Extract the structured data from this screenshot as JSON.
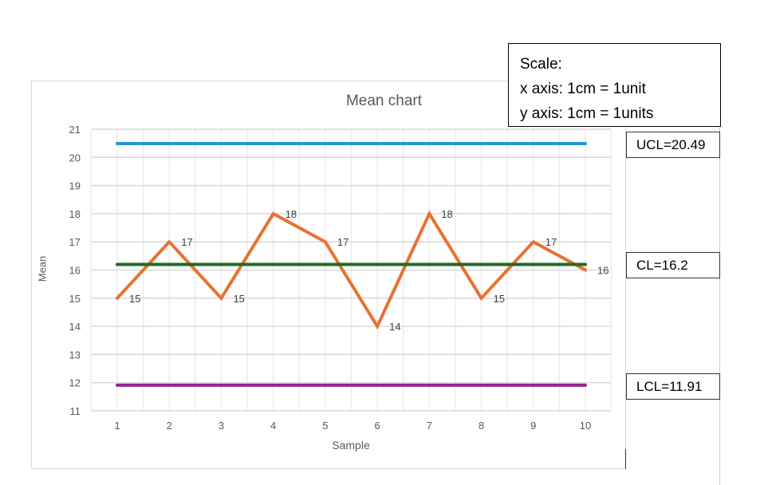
{
  "chart_data": {
    "type": "line",
    "title": "Mean chart",
    "xlabel": "Sample",
    "ylabel": "Mean",
    "categories": [
      "1",
      "2",
      "3",
      "4",
      "5",
      "6",
      "7",
      "8",
      "9",
      "10"
    ],
    "ylim": [
      11,
      21
    ],
    "yticks": [
      11,
      12,
      13,
      14,
      15,
      16,
      17,
      18,
      19,
      20,
      21
    ],
    "grid": true,
    "legend": "none",
    "series": [
      {
        "name": "Mean",
        "values": [
          15,
          17,
          15,
          18,
          17,
          14,
          18,
          15,
          17,
          16
        ],
        "color": "#e97132",
        "data_labels": true
      },
      {
        "name": "UCL",
        "values": [
          20.49,
          20.49,
          20.49,
          20.49,
          20.49,
          20.49,
          20.49,
          20.49,
          20.49,
          20.49
        ],
        "color": "#1a9ad6"
      },
      {
        "name": "CL",
        "values": [
          16.2,
          16.2,
          16.2,
          16.2,
          16.2,
          16.2,
          16.2,
          16.2,
          16.2,
          16.2
        ],
        "color": "#1f6b20"
      },
      {
        "name": "LCL",
        "values": [
          11.91,
          11.91,
          11.91,
          11.91,
          11.91,
          11.91,
          11.91,
          11.91,
          11.91,
          11.91
        ],
        "color": "#92278f"
      }
    ],
    "annotations": [
      "UCL=20.49",
      "CL=16.2",
      "LCL=11.91"
    ]
  },
  "scale_note": {
    "line1": "Scale:",
    "line2": "x axis: 1cm = 1unit",
    "line3": "y axis: 1cm = 1units"
  },
  "limits": {
    "ucl": "UCL=20.49",
    "cl": "CL=16.2",
    "lcl": "LCL=11.91"
  }
}
